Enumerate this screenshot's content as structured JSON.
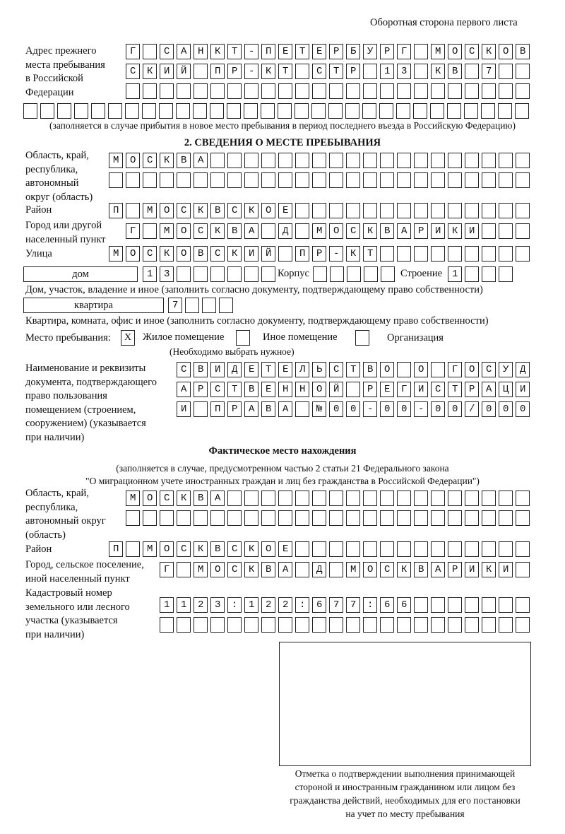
{
  "header": {
    "side_label": "Оборотная сторона первого листа"
  },
  "previous_address": {
    "label": "Адрес прежнего\nместа пребывания\nв Российской\nФедерации",
    "rows": [
      "Г САНКТ-ПЕТЕРБУРГ МОСКОВ",
      "СКИЙ ПР-КТ СТР 13 КВ 7  ",
      "                        ",
      "                              "
    ],
    "note": "(заполняется в случае прибытия в новое место пребывания в период последнего въезда в Российскую Федерацию)"
  },
  "section2": {
    "title": "2. СВЕДЕНИЯ О МЕСТЕ ПРЕБЫВАНИЯ",
    "region_label": "Область, край,\nреспублика,\nавтономный\nокруг (область)",
    "region_rows": [
      "МОСКВА                   ",
      "                         "
    ],
    "district_label": "Район",
    "district_row": "П МОСКВСКОЕ              ",
    "city_label": "Город или другой\nнаселенный пункт",
    "city_row": "Г МОСКВА Д МОСКВАРИКИ   ",
    "street_label": "Улица",
    "street_row": "МОСКОВСКИЙ ПР-КТ         ",
    "house_type": "дом",
    "house_cells": "13      ",
    "korpus_label": "Корпус",
    "korpus_cells": "     ",
    "building_label": "Строение",
    "building_cells": "1   ",
    "house_note": "Дом, участок, владение и иное (заполнить согласно документу, подтверждающему право собственности)",
    "apartment_type": "квартира",
    "apartment_cells": "7   ",
    "apartment_note": "Квартира, комната, офис и иное (заполнить согласно документу, подтверждающему право собственности)",
    "stay_place_label": "Место пребывания:",
    "options": [
      {
        "label": "Жилое помещение",
        "mark": "X"
      },
      {
        "label": "Иное помещение",
        "mark": ""
      },
      {
        "label": "Организация",
        "mark": ""
      }
    ],
    "options_note": "(Необходимо выбрать нужное)",
    "document_label": "Наименование и реквизиты\nдокумента, подтверждающего\nправо пользования\nпомещением (строением,\nсооружением) (указывается\nпри наличии)",
    "document_rows": [
      "СВИДЕТЕЛЬСТВО О ГОСУД",
      "АРСТВЕННОЙ РЕГИСТРАЦИ",
      "И ПРАВА №00-00-00/000"
    ]
  },
  "actual_location": {
    "title": "Фактическое место нахождения",
    "note_line1": "(заполняется в случае, предусмотренном частью 2 статьи 21 Федерального закона",
    "note_line2": "\"О миграционном учете иностранных граждан и лиц без гражданства в Российской Федерации\")",
    "region_label": "Область, край,\nреспублика,\nавтономный округ\n(область)",
    "region_rows": [
      "МОСКВА                  ",
      "                        "
    ],
    "district_label": "Район",
    "district_row": "П МОСКВСКОЕ              ",
    "city_label": "Город, сельское поселение,\nиной населенный пункт",
    "city_row": "Г МОСКВА Д МОСКВАРИКИ ",
    "cadastral_label": "Кадастровый номер\nземельного или лесного\nучастка (указывается\nпри наличии)",
    "cadastral_rows": [
      "1123:122:677:66       ",
      "                      "
    ]
  },
  "stamp": {
    "caption": "Отметка о подтверждении выполнения принимающей\nстороной и иностранным гражданином или лицом без\nгражданства действий, необходимых для его постановки\nна учет по месту пребывания"
  }
}
